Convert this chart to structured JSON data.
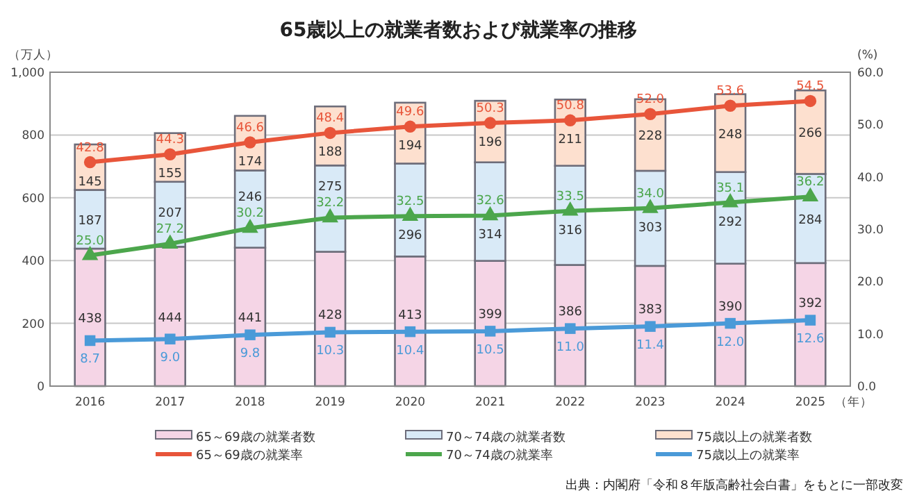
{
  "chart_data": {
    "type": "bar",
    "title": "65歳以上の就業者数および就業率の推移",
    "categories": [
      "2016",
      "2017",
      "2018",
      "2019",
      "2020",
      "2021",
      "2022",
      "2023",
      "2024",
      "2025"
    ],
    "xlabel": "（年）",
    "ylabel": "（万人）",
    "y2label": "(%)",
    "stacked": true,
    "data_labels": true,
    "grid": "y",
    "legend": "bottom",
    "ylim": [
      0,
      1000
    ],
    "yticks": [
      0,
      200,
      400,
      600,
      800,
      {
        "value": 1000,
        "label": "1,000"
      }
    ],
    "y2lim": [
      0,
      60
    ],
    "y2ticks": [
      {
        "value": 0,
        "label": "0.0"
      },
      {
        "value": 10,
        "label": "10.0"
      },
      {
        "value": 20,
        "label": "20.0"
      },
      {
        "value": 30,
        "label": "30.0"
      },
      {
        "value": 40,
        "label": "40.0"
      },
      {
        "value": 50,
        "label": "50.0"
      },
      {
        "value": 60,
        "label": "60.0"
      }
    ],
    "series": [
      {
        "name": "65～69歳の就業者数",
        "color": "#f5d5e6",
        "values": [
          438,
          444,
          441,
          428,
          413,
          399,
          386,
          383,
          390,
          392
        ]
      },
      {
        "name": "70～74歳の就業者数",
        "color": "#d9eaf7",
        "values": [
          187,
          207,
          246,
          275,
          296,
          314,
          316,
          303,
          292,
          284
        ]
      },
      {
        "name": "75歳以上の就業者数",
        "color": "#fde0cf",
        "values": [
          145,
          155,
          174,
          188,
          194,
          196,
          211,
          228,
          248,
          266
        ]
      },
      {
        "name": "65～69歳の就業率",
        "type": "line",
        "axis": "y2",
        "marker": "circle",
        "color": "#e8553a",
        "values": [
          42.8,
          44.3,
          46.6,
          48.4,
          49.6,
          50.3,
          50.8,
          52.0,
          53.6,
          54.5
        ],
        "value_labels": [
          "42.8",
          "44.3",
          "46.6",
          "48.4",
          "49.6",
          "50.3",
          "50.8",
          "52.0",
          "53.6",
          "54.5"
        ]
      },
      {
        "name": "70～74歳の就業率",
        "type": "line",
        "axis": "y2",
        "marker": "triangle",
        "color": "#4ca64c",
        "values": [
          25.0,
          27.2,
          30.2,
          32.2,
          32.5,
          32.6,
          33.5,
          34.0,
          35.1,
          36.2
        ],
        "value_labels": [
          "25.0",
          "27.2",
          "30.2",
          "32.2",
          "32.5",
          "32.6",
          "33.5",
          "34.0",
          "35.1",
          "36.2"
        ]
      },
      {
        "name": "75歳以上の就業率",
        "type": "line",
        "axis": "y2",
        "marker": "square",
        "color": "#4a9ad8",
        "values": [
          8.7,
          9.0,
          9.8,
          10.3,
          10.4,
          10.5,
          11.0,
          11.4,
          12.0,
          12.6
        ],
        "value_labels": [
          "8.7",
          "9.0",
          "9.8",
          "10.3",
          "10.4",
          "10.5",
          "11.0",
          "11.4",
          "12.0",
          "12.6"
        ]
      }
    ],
    "annotations": [
      "出典：内閣府「令和８年版高齢社会白書」をもとに一部改変"
    ]
  }
}
